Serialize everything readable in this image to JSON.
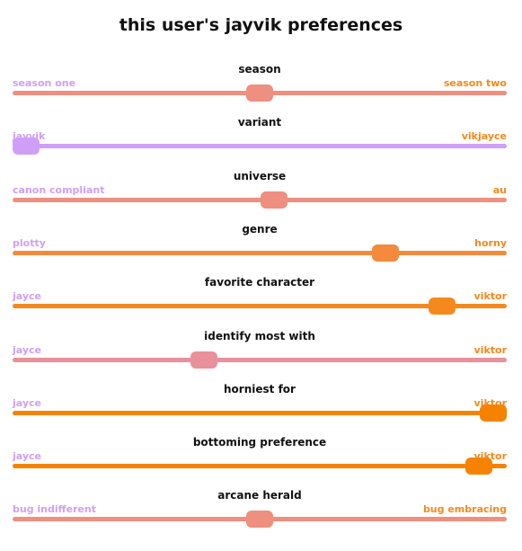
{
  "title": "this user's jayvik preferences",
  "colors": {
    "left_label": "#cf9ff7",
    "right_label": "#f5891e"
  },
  "sliders": [
    {
      "name": "season",
      "label": "season",
      "left": "season one",
      "right": "season two",
      "value": 0.5,
      "color": "#ee8f7f"
    },
    {
      "name": "variant",
      "label": "variant",
      "left": "jayvik",
      "right": "vikjayce",
      "value": 0.0,
      "color": "#cf9ff7"
    },
    {
      "name": "universe",
      "label": "universe",
      "left": "canon compliant",
      "right": "au",
      "value": 0.53,
      "color": "#ee8f7f"
    },
    {
      "name": "genre",
      "label": "genre",
      "left": "plotty",
      "right": "horny",
      "value": 0.77,
      "color": "#f38a3c"
    },
    {
      "name": "favorite-character",
      "label": "favorite character",
      "left": "jayce",
      "right": "viktor",
      "value": 0.89,
      "color": "#f5891e"
    },
    {
      "name": "identify-most-with",
      "label": "identify most with",
      "left": "jayce",
      "right": "viktor",
      "value": 0.38,
      "color": "#e8909c"
    },
    {
      "name": "horniest-for",
      "label": "horniest for",
      "left": "jayce",
      "right": "viktor",
      "value": 1.0,
      "color": "#f58300"
    },
    {
      "name": "bottoming-preference",
      "label": "bottoming preference",
      "left": "jayce",
      "right": "viktor",
      "value": 0.97,
      "color": "#f58300"
    },
    {
      "name": "arcane-herald",
      "label": "arcane herald",
      "left": "bug indifferent",
      "right": "bug embracing",
      "value": 0.5,
      "color": "#ee8f7f"
    }
  ]
}
